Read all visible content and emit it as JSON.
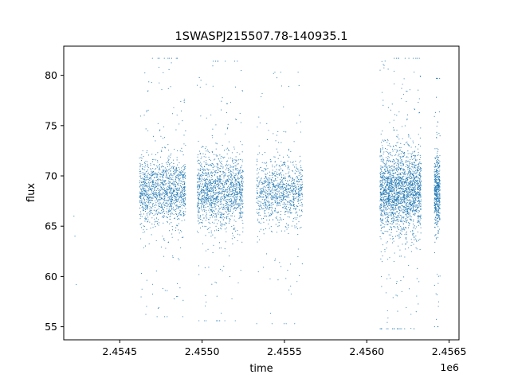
{
  "chart_data": {
    "type": "scatter",
    "title": "1SWASPJ215507.78-140935.1",
    "xlabel": "time",
    "ylabel": "flux",
    "x_offset_label": "1e6",
    "xlim": [
      2454160,
      2456560
    ],
    "ylim": [
      53.7,
      82.9
    ],
    "x_ticks": [
      2454500,
      2455000,
      2455500,
      2456000,
      2456500
    ],
    "x_tick_labels": [
      "2.4545",
      "2.4550",
      "2.4555",
      "2.4560",
      "2.4565"
    ],
    "y_ticks": [
      55,
      60,
      65,
      70,
      75,
      80
    ],
    "y_tick_labels": [
      "55",
      "60",
      "65",
      "70",
      "75",
      "80"
    ],
    "grid": false,
    "legend": "none",
    "marker_color": "#1f77b4",
    "isolated_points": [
      {
        "x": 2454222,
        "y": 66.0
      },
      {
        "x": 2454228,
        "y": 64.0
      },
      {
        "x": 2454236,
        "y": 59.2
      }
    ],
    "clusters": [
      {
        "x_start": 2454620,
        "x_end": 2454900,
        "center": 68.5,
        "core_low": 65.5,
        "core_high": 72.0,
        "min": 56.0,
        "max": 81.7,
        "points": 1400
      },
      {
        "x_start": 2454970,
        "x_end": 2455250,
        "center": 68.5,
        "core_low": 65.0,
        "core_high": 72.0,
        "min": 55.6,
        "max": 81.4,
        "points": 1500
      },
      {
        "x_start": 2455330,
        "x_end": 2455610,
        "center": 68.5,
        "core_low": 65.5,
        "core_high": 71.5,
        "min": 55.3,
        "max": 80.3,
        "points": 1000
      },
      {
        "x_start": 2456080,
        "x_end": 2456330,
        "center": 68.5,
        "core_low": 64.5,
        "core_high": 72.5,
        "min": 54.8,
        "max": 81.7,
        "points": 2200
      },
      {
        "x_start": 2456410,
        "x_end": 2456445,
        "center": 68.5,
        "core_low": 65.0,
        "core_high": 72.0,
        "min": 55.0,
        "max": 79.7,
        "points": 500
      }
    ]
  }
}
